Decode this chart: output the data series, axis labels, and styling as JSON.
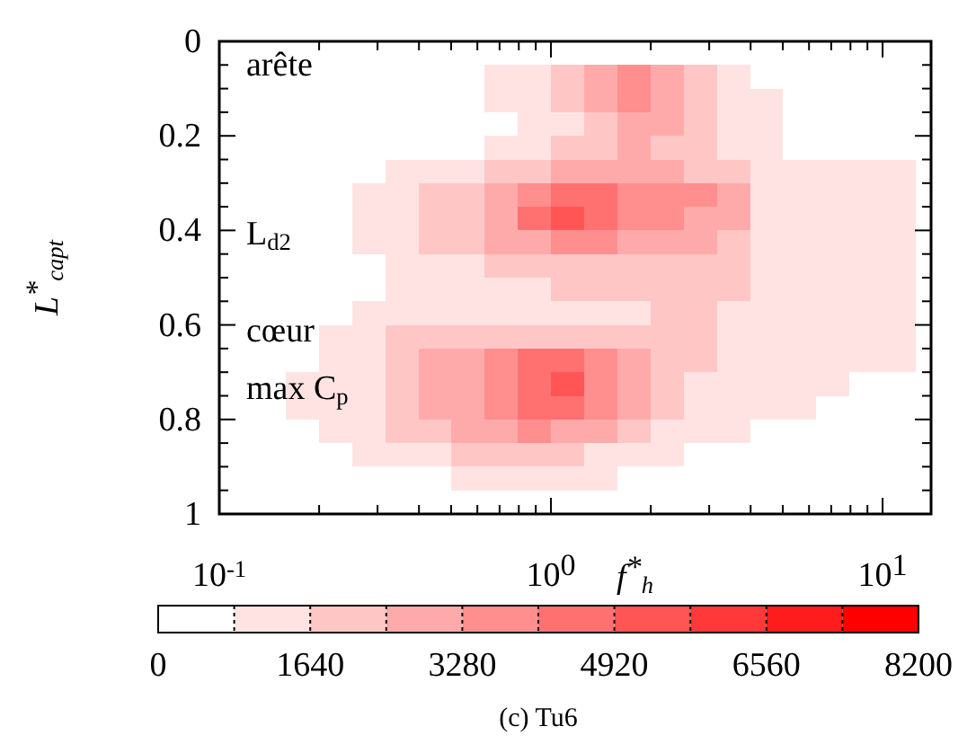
{
  "chart_data": {
    "type": "heatmap",
    "xlabel": "f$^{*}$$_{h}$",
    "ylabel": "L$^{*}$$_{capt}$",
    "log": "x",
    "grid": false,
    "x": [
      0.112,
      0.141,
      0.178,
      0.224,
      0.282,
      0.355,
      0.447,
      0.562,
      0.708,
      0.891,
      1.12,
      1.41,
      1.78,
      2.24,
      2.82,
      3.55,
      4.47,
      5.62,
      7.08,
      8.91,
      11.2
    ],
    "y": [
      0.025,
      0.075,
      0.125,
      0.175,
      0.225,
      0.275,
      0.325,
      0.375,
      0.425,
      0.475,
      0.525,
      0.575,
      0.625,
      0.675,
      0.725,
      0.775,
      0.825,
      0.875,
      0.925,
      0.975
    ],
    "xlim": [
      0.1,
      14
    ],
    "ylim": [
      1,
      0
    ],
    "xticks": [
      {
        "value": 0.1,
        "label": "10$^{-1}$"
      },
      {
        "value": 0.2,
        "label": null
      },
      {
        "value": 0.3,
        "label": null
      },
      {
        "value": 0.4,
        "label": null
      },
      {
        "value": 0.5,
        "label": null
      },
      {
        "value": 0.6,
        "label": null
      },
      {
        "value": 0.7,
        "label": null
      },
      {
        "value": 0.8,
        "label": null
      },
      {
        "value": 0.9,
        "label": null
      },
      {
        "value": 1,
        "label": "10$^{0}$"
      },
      {
        "value": 2,
        "label": null
      },
      {
        "value": 3,
        "label": null
      },
      {
        "value": 4,
        "label": null
      },
      {
        "value": 5,
        "label": null
      },
      {
        "value": 6,
        "label": null
      },
      {
        "value": 7,
        "label": null
      },
      {
        "value": 8,
        "label": null
      },
      {
        "value": 9,
        "label": null
      },
      {
        "value": 10,
        "label": "10$^{1}$"
      }
    ],
    "yticks": [
      0,
      {
        "value": 0.05,
        "label": null
      },
      {
        "value": 0.1,
        "label": null
      },
      {
        "value": 0.15,
        "label": null
      },
      0.2,
      {
        "value": 0.25,
        "label": null
      },
      {
        "value": 0.3,
        "label": null
      },
      {
        "value": 0.35,
        "label": null
      },
      0.4,
      {
        "value": 0.45,
        "label": null
      },
      {
        "value": 0.5,
        "label": null
      },
      {
        "value": 0.55,
        "label": null
      },
      0.6,
      {
        "value": 0.65,
        "label": null
      },
      {
        "value": 0.7,
        "label": null
      },
      {
        "value": 0.75,
        "label": null
      },
      0.8,
      {
        "value": 0.85,
        "label": null
      },
      {
        "value": 0.9,
        "label": null
      },
      {
        "value": 0.95,
        "label": null
      },
      1
    ],
    "clim": [
      0,
      8200
    ],
    "cticks": [
      0,
      {
        "value": 820,
        "label": null
      },
      1640,
      {
        "value": 2460,
        "label": null
      },
      3280,
      {
        "value": 4100,
        "label": null
      },
      4920,
      {
        "value": 5740,
        "label": null
      },
      6560,
      {
        "value": 7380,
        "label": null
      },
      8200
    ],
    "colors": [
      "#ffffff",
      "#ff0000"
    ],
    "cells": [
      [
        0,
        0,
        0,
        0,
        0,
        0,
        0,
        0,
        0,
        0,
        0,
        0,
        0,
        0,
        0,
        0,
        0,
        0,
        0,
        0,
        0
      ],
      [
        0,
        0,
        0,
        0,
        0,
        0,
        0,
        0,
        1230,
        1230,
        2050,
        2870,
        3690,
        2870,
        2050,
        1230,
        0,
        0,
        0,
        0,
        0
      ],
      [
        0,
        0,
        0,
        0,
        0,
        0,
        0,
        0,
        1230,
        1230,
        2050,
        2870,
        3690,
        2870,
        2050,
        1230,
        1230,
        0,
        0,
        0,
        0
      ],
      [
        0,
        0,
        0,
        0,
        0,
        0,
        0,
        0,
        0,
        1230,
        1230,
        2050,
        2870,
        2870,
        2050,
        1230,
        1230,
        0,
        0,
        0,
        0
      ],
      [
        0,
        0,
        0,
        0,
        0,
        0,
        0,
        0,
        1230,
        1230,
        2050,
        2050,
        2870,
        2050,
        2050,
        1230,
        1230,
        0,
        0,
        0,
        0
      ],
      [
        0,
        0,
        0,
        0,
        0,
        1230,
        1230,
        1230,
        2050,
        2050,
        2870,
        2870,
        2870,
        2870,
        2050,
        2050,
        1230,
        1230,
        1230,
        1230,
        1230
      ],
      [
        0,
        0,
        0,
        0,
        1230,
        1230,
        2050,
        2050,
        2870,
        3690,
        4510,
        4510,
        3690,
        3690,
        3690,
        2870,
        1230,
        1230,
        1230,
        1230,
        1230
      ],
      [
        0,
        0,
        0,
        0,
        1230,
        1230,
        2050,
        2050,
        2870,
        4510,
        5330,
        4510,
        3690,
        3690,
        2870,
        2870,
        1230,
        1230,
        1230,
        1230,
        1230
      ],
      [
        0,
        0,
        0,
        0,
        1230,
        1230,
        2050,
        2050,
        2870,
        2870,
        3690,
        3690,
        2870,
        2870,
        2870,
        2050,
        1230,
        1230,
        1230,
        1230,
        1230
      ],
      [
        0,
        0,
        0,
        0,
        0,
        1230,
        1230,
        1230,
        2050,
        2050,
        2050,
        2050,
        2050,
        2050,
        2050,
        2050,
        1230,
        1230,
        1230,
        1230,
        1230
      ],
      [
        0,
        0,
        0,
        0,
        0,
        1230,
        1230,
        1230,
        1230,
        1230,
        2050,
        2050,
        2050,
        2050,
        2050,
        2050,
        1230,
        1230,
        1230,
        1230,
        1230
      ],
      [
        0,
        0,
        0,
        0,
        1230,
        1230,
        1230,
        1230,
        1230,
        1230,
        1230,
        1230,
        1230,
        2050,
        2050,
        1230,
        1230,
        1230,
        1230,
        1230,
        1230
      ],
      [
        0,
        0,
        0,
        1230,
        1230,
        2050,
        2050,
        2050,
        2050,
        2050,
        2050,
        2050,
        2050,
        2050,
        2050,
        1230,
        1230,
        1230,
        1230,
        1230,
        1230
      ],
      [
        0,
        0,
        0,
        1230,
        1230,
        2050,
        2870,
        2870,
        3690,
        4510,
        4510,
        3690,
        2870,
        2050,
        2050,
        1230,
        1230,
        1230,
        1230,
        1230,
        1230
      ],
      [
        0,
        0,
        1230,
        1230,
        1230,
        2050,
        2870,
        2870,
        3690,
        4510,
        5330,
        3690,
        2870,
        2050,
        1230,
        1230,
        1230,
        1230,
        1230,
        0,
        0
      ],
      [
        0,
        0,
        1230,
        1230,
        1230,
        2050,
        2870,
        2870,
        3690,
        4510,
        4510,
        3690,
        2870,
        2050,
        1230,
        1230,
        1230,
        1230,
        0,
        0,
        0
      ],
      [
        0,
        0,
        0,
        1230,
        1230,
        2050,
        2050,
        2870,
        2870,
        3690,
        2870,
        2870,
        2050,
        1230,
        1230,
        1230,
        0,
        0,
        0,
        0,
        0
      ],
      [
        0,
        0,
        0,
        0,
        1230,
        1230,
        1230,
        2050,
        2050,
        2050,
        2050,
        1230,
        1230,
        1230,
        0,
        0,
        0,
        0,
        0,
        0,
        0
      ],
      [
        0,
        0,
        0,
        0,
        0,
        0,
        0,
        1230,
        1230,
        1230,
        1230,
        1230,
        0,
        0,
        0,
        0,
        0,
        0,
        0,
        0,
        0
      ],
      [
        0,
        0,
        0,
        0,
        0,
        0,
        0,
        0,
        0,
        0,
        0,
        0,
        0,
        0,
        0,
        0,
        0,
        0,
        0,
        0,
        0
      ]
    ],
    "annotations": [
      "arête",
      "L$_{d2}$",
      "cœur",
      "max C$_{p}$",
      "(c) Tu6"
    ]
  }
}
